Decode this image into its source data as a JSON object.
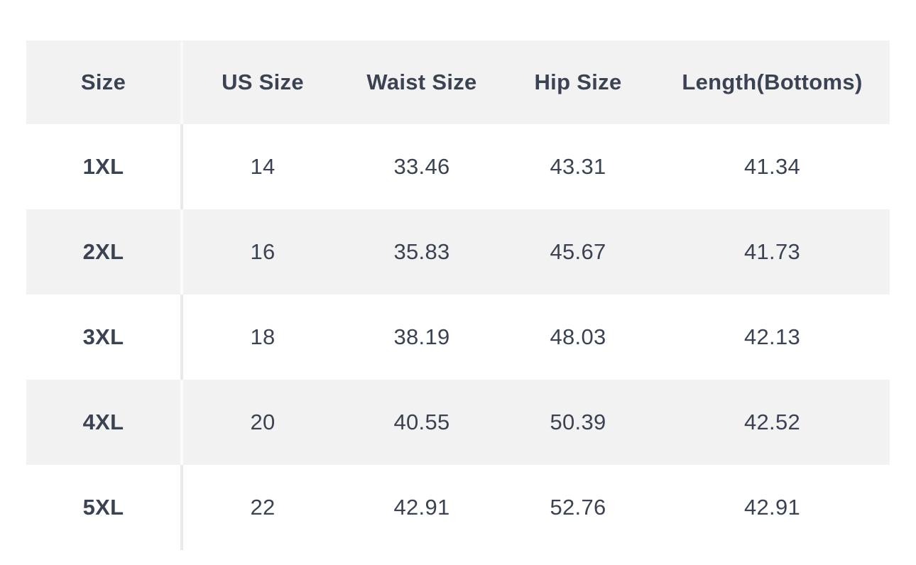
{
  "size_chart": {
    "columns": [
      "Size",
      "US Size",
      "Waist Size",
      "Hip Size",
      "Length(Bottoms)"
    ],
    "rows": [
      [
        "1XL",
        "14",
        "33.46",
        "43.31",
        "41.34"
      ],
      [
        "2XL",
        "16",
        "35.83",
        "45.67",
        "41.73"
      ],
      [
        "3XL",
        "18",
        "38.19",
        "48.03",
        "42.13"
      ],
      [
        "4XL",
        "20",
        "40.55",
        "50.39",
        "42.52"
      ],
      [
        "5XL",
        "22",
        "42.91",
        "52.76",
        "42.91"
      ]
    ],
    "colors": {
      "text": "#3b4353",
      "stripe_background": "#f2f2f3",
      "divider": "#e9e9e9"
    }
  }
}
